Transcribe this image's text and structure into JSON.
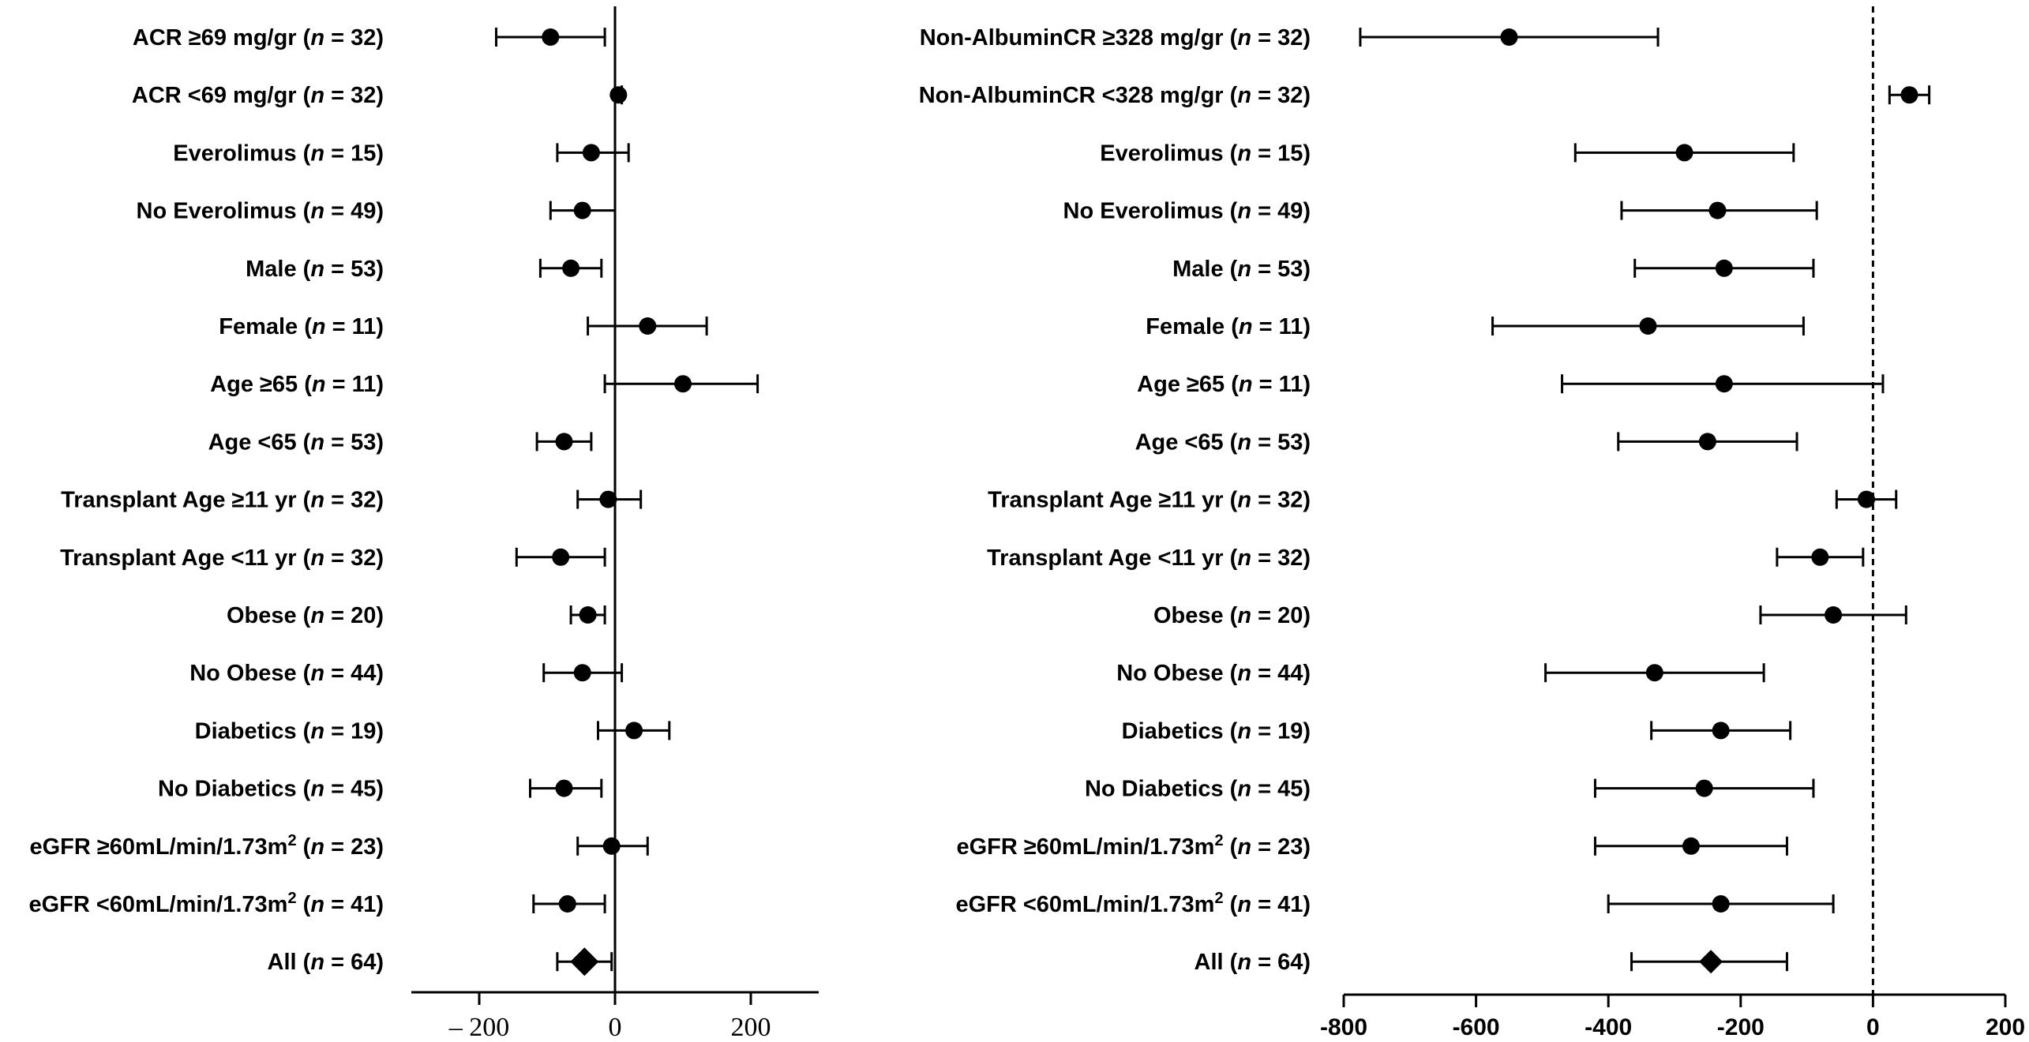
{
  "chart_data": [
    {
      "type": "forest",
      "panel": "left",
      "title": "",
      "xlabel": "",
      "ylabel": "",
      "xlim": [
        -300,
        300
      ],
      "xticks": [
        -200,
        0,
        200
      ],
      "xtick_labels": [
        "– 200",
        "0",
        "200"
      ],
      "reference_line": {
        "x": 0,
        "style": "solid"
      },
      "rows": [
        {
          "pre": "ACR ≥69 mg/gr (",
          "n_label": "n",
          "post": " = 32)",
          "estimate": -95,
          "lower": -175,
          "upper": -15,
          "marker": "circle"
        },
        {
          "pre": "ACR <69 mg/gr (",
          "n_label": "n",
          "post": " = 32)",
          "estimate": 5,
          "lower": 0,
          "upper": 10,
          "marker": "circle"
        },
        {
          "pre": "Everolimus (",
          "n_label": "n",
          "post": " = 15)",
          "estimate": -35,
          "lower": -85,
          "upper": 20,
          "marker": "circle"
        },
        {
          "pre": "No Everolimus (",
          "n_label": "n",
          "post": " = 49)",
          "estimate": -48,
          "lower": -95,
          "upper": 0,
          "marker": "circle"
        },
        {
          "pre": "Male (",
          "n_label": "n",
          "post": " = 53)",
          "estimate": -65,
          "lower": -110,
          "upper": -20,
          "marker": "circle"
        },
        {
          "pre": "Female (",
          "n_label": "n",
          "post": " = 11)",
          "estimate": 48,
          "lower": -40,
          "upper": 135,
          "marker": "circle"
        },
        {
          "pre": "Age ≥65 (",
          "n_label": "n",
          "post": " = 11)",
          "estimate": 100,
          "lower": -15,
          "upper": 210,
          "marker": "circle"
        },
        {
          "pre": "Age <65 (",
          "n_label": "n",
          "post": " = 53)",
          "estimate": -75,
          "lower": -115,
          "upper": -35,
          "marker": "circle"
        },
        {
          "pre": "Transplant Age ≥11 yr (",
          "n_label": "n",
          "post": " = 32)",
          "estimate": -10,
          "lower": -55,
          "upper": 38,
          "marker": "circle"
        },
        {
          "pre": "Transplant Age <11 yr (",
          "n_label": "n",
          "post": " = 32)",
          "estimate": -80,
          "lower": -145,
          "upper": -15,
          "marker": "circle"
        },
        {
          "pre": "Obese (",
          "n_label": "n",
          "post": " = 20)",
          "estimate": -40,
          "lower": -65,
          "upper": -15,
          "marker": "circle"
        },
        {
          "pre": "No Obese (",
          "n_label": "n",
          "post": " = 44)",
          "estimate": -48,
          "lower": -105,
          "upper": 10,
          "marker": "circle"
        },
        {
          "pre": "Diabetics (",
          "n_label": "n",
          "post": " = 19)",
          "estimate": 28,
          "lower": -25,
          "upper": 80,
          "marker": "circle"
        },
        {
          "pre": "No Diabetics (",
          "n_label": "n",
          "post": " = 45)",
          "estimate": -75,
          "lower": -125,
          "upper": -20,
          "marker": "circle"
        },
        {
          "pre": "eGFR ≥60mL/min/1.73m",
          "sup": "2",
          "pre2": " (",
          "n_label": "n",
          "post": " = 23)",
          "estimate": -5,
          "lower": -55,
          "upper": 48,
          "marker": "circle"
        },
        {
          "pre": "eGFR <60mL/min/1.73m",
          "sup": "2",
          "pre2": " (",
          "n_label": "n",
          "post": " = 41)",
          "estimate": -70,
          "lower": -120,
          "upper": -15,
          "marker": "circle"
        },
        {
          "pre": "All (",
          "n_label": "n",
          "post": " = 64)",
          "estimate": -45,
          "lower": -85,
          "upper": -5,
          "marker": "diamond"
        }
      ]
    },
    {
      "type": "forest",
      "panel": "right",
      "title": "",
      "xlabel": "",
      "ylabel": "",
      "xlim": [
        -800,
        200
      ],
      "xticks": [
        -800,
        -600,
        -400,
        -200,
        0,
        200
      ],
      "xtick_labels": [
        "-800",
        "-600",
        "-400",
        "-200",
        "0",
        "200"
      ],
      "reference_line": {
        "x": 0,
        "style": "dashed"
      },
      "rows": [
        {
          "pre": "Non-AlbuminCR ≥328 mg/gr (",
          "n_label": "n",
          "post": " = 32)",
          "estimate": -550,
          "lower": -775,
          "upper": -325,
          "marker": "circle"
        },
        {
          "pre": "Non-AlbuminCR <328 mg/gr (",
          "n_label": "n",
          "post": " = 32)",
          "estimate": 55,
          "lower": 25,
          "upper": 85,
          "marker": "circle"
        },
        {
          "pre": "Everolimus (",
          "n_label": "n",
          "post": " = 15)",
          "estimate": -285,
          "lower": -450,
          "upper": -120,
          "marker": "circle"
        },
        {
          "pre": "No Everolimus (",
          "n_label": "n",
          "post": " = 49)",
          "estimate": -235,
          "lower": -380,
          "upper": -85,
          "marker": "circle"
        },
        {
          "pre": "Male (",
          "n_label": "n",
          "post": " = 53)",
          "estimate": -225,
          "lower": -360,
          "upper": -90,
          "marker": "circle"
        },
        {
          "pre": "Female (",
          "n_label": "n",
          "post": " = 11)",
          "estimate": -340,
          "lower": -575,
          "upper": -105,
          "marker": "circle"
        },
        {
          "pre": "Age ≥65 (",
          "n_label": "n",
          "post": " = 11)",
          "estimate": -225,
          "lower": -470,
          "upper": 15,
          "marker": "circle"
        },
        {
          "pre": "Age <65 (",
          "n_label": "n",
          "post": " = 53)",
          "estimate": -250,
          "lower": -385,
          "upper": -115,
          "marker": "circle"
        },
        {
          "pre": "Transplant Age ≥11 yr (",
          "n_label": "n",
          "post": " = 32)",
          "estimate": -10,
          "lower": -55,
          "upper": 35,
          "marker": "circle"
        },
        {
          "pre": "Transplant Age <11 yr (",
          "n_label": "n",
          "post": " = 32)",
          "estimate": -80,
          "lower": -145,
          "upper": -15,
          "marker": "circle"
        },
        {
          "pre": "Obese (",
          "n_label": "n",
          "post": " = 20)",
          "estimate": -60,
          "lower": -170,
          "upper": 50,
          "marker": "circle"
        },
        {
          "pre": "No Obese (",
          "n_label": "n",
          "post": " = 44)",
          "estimate": -330,
          "lower": -495,
          "upper": -165,
          "marker": "circle"
        },
        {
          "pre": "Diabetics (",
          "n_label": "n",
          "post": " = 19)",
          "estimate": -230,
          "lower": -335,
          "upper": -125,
          "marker": "circle"
        },
        {
          "pre": "No Diabetics (",
          "n_label": "n",
          "post": " = 45)",
          "estimate": -255,
          "lower": -420,
          "upper": -90,
          "marker": "circle"
        },
        {
          "pre": "eGFR ≥60mL/min/1.73m",
          "sup": "2",
          "pre2": " (",
          "n_label": "n",
          "post": " = 23)",
          "estimate": -275,
          "lower": -420,
          "upper": -130,
          "marker": "circle"
        },
        {
          "pre": "eGFR <60mL/min/1.73m",
          "sup": "2",
          "pre2": " (",
          "n_label": "n",
          "post": " = 41)",
          "estimate": -230,
          "lower": -400,
          "upper": -60,
          "marker": "circle"
        },
        {
          "pre": "All (",
          "n_label": "n",
          "post": " = 64)",
          "estimate": -245,
          "lower": -365,
          "upper": -130,
          "marker": "diamond"
        }
      ]
    }
  ],
  "colors": {
    "ink": "#000000",
    "background": "#ffffff"
  }
}
